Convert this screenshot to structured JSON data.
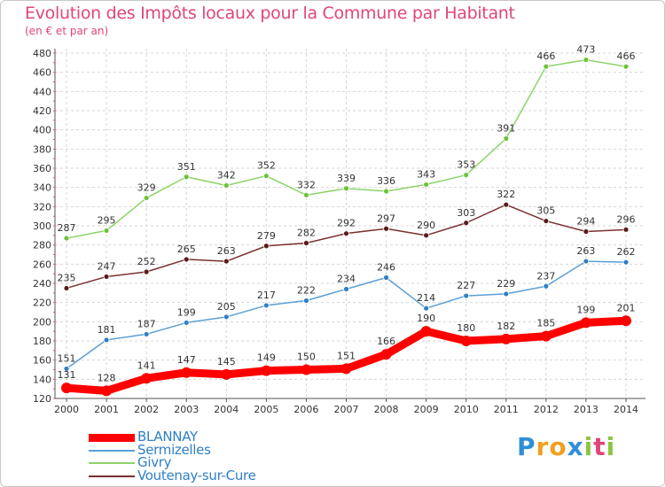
{
  "header": {
    "title": "Evolution des Impôts locaux pour la Commune par Habitant",
    "subtitle": "(en € et par an)"
  },
  "logo": {
    "letters": [
      "P",
      "r",
      "o",
      "x",
      "i",
      "t",
      "i"
    ],
    "colors": [
      "#2f8fd6",
      "#f0a020",
      "#f0a020",
      "#2f8fd6",
      "#8cc63f",
      "#e0457b",
      "#8cc63f"
    ]
  },
  "chart_data": {
    "type": "line",
    "x": [
      "2000",
      "2001",
      "2002",
      "2003",
      "2004",
      "2005",
      "2006",
      "2007",
      "2008",
      "2009",
      "2010",
      "2011",
      "2012",
      "2013",
      "2014"
    ],
    "ylim": [
      120,
      480
    ],
    "yticks": [
      120,
      140,
      160,
      180,
      200,
      220,
      240,
      260,
      280,
      300,
      320,
      340,
      360,
      380,
      400,
      420,
      440,
      460,
      480
    ],
    "grid": true,
    "legend_position": "bottom-left",
    "series": [
      {
        "name": "Givry",
        "color": "#8cd46a",
        "point_color": "#6cc23a",
        "values": [
          287,
          295,
          329,
          351,
          342,
          352,
          332,
          339,
          336,
          343,
          353,
          391,
          466,
          473,
          466
        ]
      },
      {
        "name": "Voutenay-sur-Cure",
        "color": "#7a2f2f",
        "point_color": "#5a1a1a",
        "values": [
          235,
          247,
          252,
          265,
          263,
          279,
          282,
          292,
          297,
          290,
          303,
          322,
          305,
          294,
          296
        ]
      },
      {
        "name": "Sermizelles",
        "color": "#5b9fd6",
        "point_color": "#2f7fc6",
        "values": [
          151,
          181,
          187,
          199,
          205,
          217,
          222,
          234,
          246,
          214,
          227,
          229,
          237,
          263,
          262
        ]
      },
      {
        "name": "BLANNAY",
        "color": "#ff0000",
        "point_color": "#ff0000",
        "values": [
          131,
          128,
          141,
          147,
          145,
          149,
          150,
          151,
          166,
          190,
          180,
          182,
          185,
          199,
          201
        ]
      }
    ],
    "legend": [
      {
        "name": "BLANNAY",
        "color": "#ff0000",
        "label_color": "#2f7fc6"
      },
      {
        "name": "Sermizelles",
        "color": "#5b9fd6",
        "label_color": "#2f7fc6"
      },
      {
        "name": "Givry",
        "color": "#8cd46a",
        "label_color": "#2f7fc6"
      },
      {
        "name": "Voutenay-sur-Cure",
        "color": "#7a2f2f",
        "label_color": "#2f7fc6"
      }
    ]
  }
}
